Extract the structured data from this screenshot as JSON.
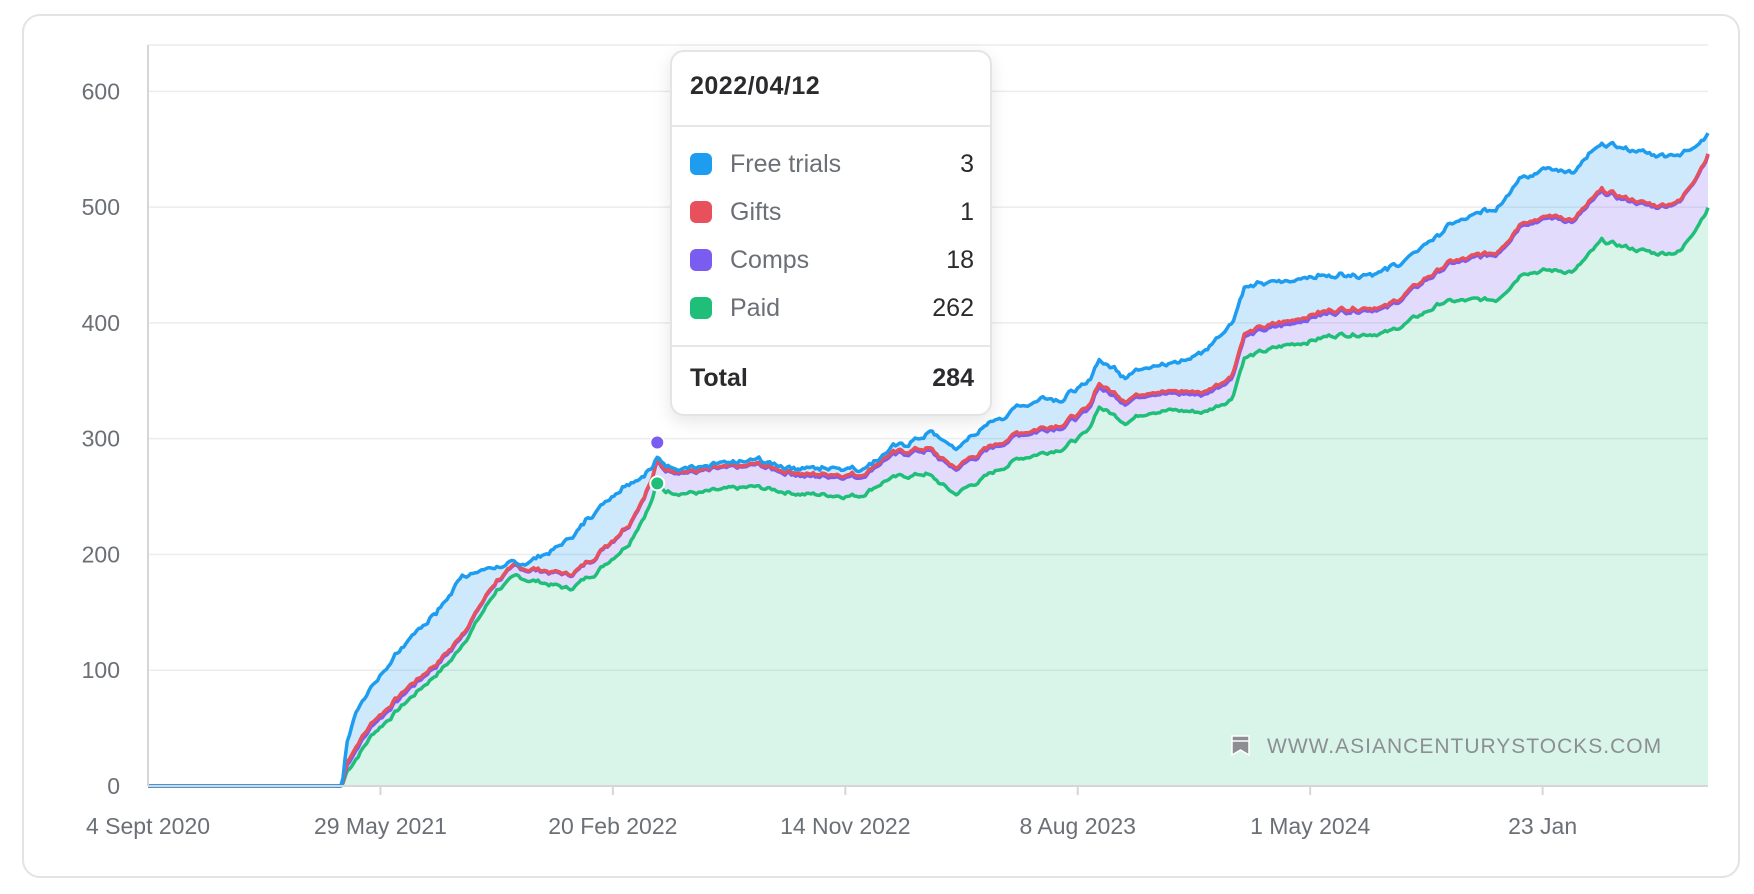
{
  "chart_data": {
    "type": "area",
    "stacked": true,
    "x_ticks": [
      "4 Sept 2020",
      "29 May 2021",
      "20 Feb 2022",
      "14 Nov 2022",
      "8 Aug 2023",
      "1 May 2024",
      "23 Jan"
    ],
    "y_ticks": [
      "0",
      "100",
      "200",
      "300",
      "400",
      "500",
      "600"
    ],
    "ylim": [
      0,
      640
    ],
    "xlim": [
      "2020-09-04",
      "2025-08-01"
    ],
    "grid": true,
    "series": [
      {
        "name": "Paid",
        "color": "#1fbf7a",
        "points": [
          [
            "2020-09-04",
            0
          ],
          [
            "2021-04-15",
            0
          ],
          [
            "2021-04-20",
            12
          ],
          [
            "2021-05-20",
            45
          ],
          [
            "2021-07-01",
            75
          ],
          [
            "2021-08-20",
            110
          ],
          [
            "2021-09-15",
            140
          ],
          [
            "2021-10-10",
            170
          ],
          [
            "2021-11-01",
            180
          ],
          [
            "2021-12-01",
            176
          ],
          [
            "2022-01-01",
            170
          ],
          [
            "2022-02-01",
            185
          ],
          [
            "2022-03-10",
            210
          ],
          [
            "2022-04-05",
            245
          ],
          [
            "2022-04-12",
            262
          ],
          [
            "2022-04-20",
            255
          ],
          [
            "2022-06-01",
            253
          ],
          [
            "2022-08-01",
            258
          ],
          [
            "2022-10-01",
            252
          ],
          [
            "2022-12-01",
            251
          ],
          [
            "2023-01-01",
            265
          ],
          [
            "2023-02-15",
            270
          ],
          [
            "2023-03-20",
            252
          ],
          [
            "2023-04-20",
            265
          ],
          [
            "2023-06-01",
            283
          ],
          [
            "2023-07-20",
            292
          ],
          [
            "2023-08-20",
            305
          ],
          [
            "2023-09-01",
            328
          ],
          [
            "2023-10-01",
            315
          ],
          [
            "2023-11-01",
            325
          ],
          [
            "2024-01-01",
            323
          ],
          [
            "2024-02-01",
            335
          ],
          [
            "2024-02-15",
            370
          ],
          [
            "2024-04-01",
            380
          ],
          [
            "2024-06-01",
            390
          ],
          [
            "2024-08-01",
            392
          ],
          [
            "2024-09-01",
            405
          ],
          [
            "2024-10-01",
            418
          ],
          [
            "2024-12-01",
            420
          ],
          [
            "2025-01-01",
            445
          ],
          [
            "2025-03-01",
            445
          ],
          [
            "2025-04-01",
            470
          ],
          [
            "2025-06-01",
            460
          ],
          [
            "2025-07-01",
            462
          ],
          [
            "2025-08-01",
            500
          ]
        ]
      },
      {
        "name": "Comps",
        "color": "#7b5cf0",
        "points": [
          [
            "2020-09-04",
            0
          ],
          [
            "2021-04-15",
            0
          ],
          [
            "2021-04-20",
            5
          ],
          [
            "2021-05-01",
            8
          ],
          [
            "2021-06-01",
            8
          ],
          [
            "2021-08-01",
            8
          ],
          [
            "2021-10-01",
            8
          ],
          [
            "2021-11-01",
            8
          ],
          [
            "2022-01-01",
            12
          ],
          [
            "2022-03-01",
            15
          ],
          [
            "2022-04-12",
            18
          ],
          [
            "2022-06-01",
            18
          ],
          [
            "2022-08-01",
            18
          ],
          [
            "2022-10-01",
            16
          ],
          [
            "2022-12-01",
            16
          ],
          [
            "2023-02-01",
            20
          ],
          [
            "2023-04-01",
            22
          ],
          [
            "2023-06-01",
            20
          ],
          [
            "2023-09-01",
            18
          ],
          [
            "2023-11-01",
            15
          ],
          [
            "2024-01-01",
            15
          ],
          [
            "2024-02-15",
            18
          ],
          [
            "2024-04-01",
            18
          ],
          [
            "2024-06-01",
            20
          ],
          [
            "2024-08-01",
            22
          ],
          [
            "2024-10-01",
            30
          ],
          [
            "2024-12-01",
            40
          ],
          [
            "2025-02-01",
            45
          ],
          [
            "2025-04-01",
            42
          ],
          [
            "2025-06-01",
            40
          ],
          [
            "2025-08-01",
            45
          ]
        ]
      },
      {
        "name": "Gifts",
        "color": "#e8505b",
        "points": [
          [
            "2020-09-04",
            0
          ],
          [
            "2021-04-15",
            0
          ],
          [
            "2021-04-20",
            3
          ],
          [
            "2021-06-01",
            3
          ],
          [
            "2021-08-01",
            2
          ],
          [
            "2021-10-01",
            1
          ],
          [
            "2022-01-01",
            1
          ],
          [
            "2022-04-12",
            1
          ],
          [
            "2022-08-01",
            1
          ],
          [
            "2022-10-01",
            2
          ],
          [
            "2023-01-01",
            2
          ],
          [
            "2023-06-01",
            2
          ],
          [
            "2023-09-01",
            3
          ],
          [
            "2023-11-01",
            2
          ],
          [
            "2024-03-01",
            3
          ],
          [
            "2024-08-01",
            2
          ],
          [
            "2025-01-01",
            2
          ],
          [
            "2025-04-01",
            2
          ],
          [
            "2025-08-01",
            1
          ]
        ]
      },
      {
        "name": "Free trials",
        "color": "#1e9df0",
        "points": [
          [
            "2020-09-04",
            0
          ],
          [
            "2021-04-15",
            0
          ],
          [
            "2021-04-20",
            15
          ],
          [
            "2021-05-01",
            30
          ],
          [
            "2021-07-01",
            40
          ],
          [
            "2021-09-01",
            50
          ],
          [
            "2021-10-10",
            10
          ],
          [
            "2021-11-01",
            2
          ],
          [
            "2021-12-01",
            12
          ],
          [
            "2022-01-01",
            30
          ],
          [
            "2022-02-01",
            40
          ],
          [
            "2022-03-10",
            35
          ],
          [
            "2022-04-12",
            3
          ],
          [
            "2022-06-01",
            3
          ],
          [
            "2022-08-01",
            3
          ],
          [
            "2022-10-01",
            5
          ],
          [
            "2022-12-01",
            5
          ],
          [
            "2023-01-01",
            3
          ],
          [
            "2023-03-01",
            15
          ],
          [
            "2023-05-01",
            20
          ],
          [
            "2023-07-01",
            25
          ],
          [
            "2023-09-01",
            20
          ],
          [
            "2023-10-01",
            20
          ],
          [
            "2023-12-01",
            25
          ],
          [
            "2024-02-01",
            45
          ],
          [
            "2024-02-15",
            40
          ],
          [
            "2024-04-01",
            35
          ],
          [
            "2024-06-01",
            30
          ],
          [
            "2024-08-01",
            30
          ],
          [
            "2024-10-01",
            30
          ],
          [
            "2024-12-01",
            40
          ],
          [
            "2025-02-01",
            40
          ],
          [
            "2025-04-01",
            40
          ],
          [
            "2025-06-01",
            45
          ],
          [
            "2025-07-01",
            40
          ],
          [
            "2025-08-01",
            18
          ]
        ]
      }
    ]
  },
  "tooltip": {
    "date": "2022/04/12",
    "rows": [
      {
        "label": "Free trials",
        "value": "3",
        "color": "#1e9df0"
      },
      {
        "label": "Gifts",
        "value": "1",
        "color": "#e8505b"
      },
      {
        "label": "Comps",
        "value": "18",
        "color": "#7b5cf0"
      },
      {
        "label": "Paid",
        "value": "262",
        "color": "#1fbf7a"
      }
    ],
    "total_label": "Total",
    "total_value": "284"
  },
  "watermark": "WWW.ASIANCENTURYSTOCKS.COM",
  "watermark_icon": "bookmark-icon"
}
